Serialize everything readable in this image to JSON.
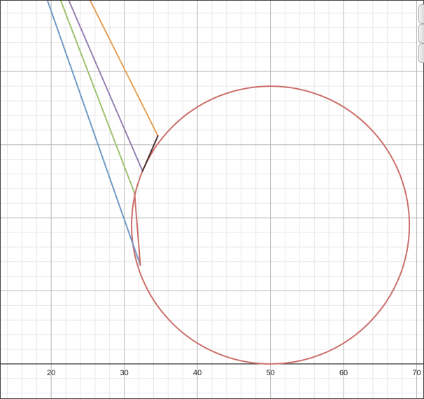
{
  "chart_data": {
    "type": "line",
    "title": "",
    "xlabel": "",
    "ylabel": "",
    "xlim": [
      13,
      71
    ],
    "ylim": [
      -4.8,
      49.8
    ],
    "x_major_step": 10,
    "y_major_step": 10,
    "minor_divisions": 5,
    "grid": true,
    "x_tick_labels": [
      "20",
      "30",
      "40",
      "50",
      "60",
      "70"
    ],
    "y_tick_labels": [],
    "colors": {
      "axis": "#333333",
      "major_grid": "#b8b8b8",
      "minor_grid": "#e7e7e7",
      "frame": "#444444"
    },
    "series": [
      {
        "type": "circle",
        "center": [
          50,
          19
        ],
        "radius": 19,
        "color": "#cc6f6a"
      },
      {
        "type": "line",
        "color": "#e8a055",
        "points": [
          [
            25.2,
            50
          ],
          [
            34.6,
            31.2
          ]
        ]
      },
      {
        "type": "line",
        "color": "#9581b3",
        "points": [
          [
            22.3,
            50
          ],
          [
            32.5,
            26.4
          ]
        ]
      },
      {
        "type": "line",
        "color": "#9dc26f",
        "points": [
          [
            21.2,
            50
          ],
          [
            31.4,
            23.4
          ]
        ]
      },
      {
        "type": "line",
        "color": "#7199c6",
        "points": [
          [
            19.4,
            50
          ],
          [
            32.2,
            13.5
          ]
        ]
      },
      {
        "type": "line",
        "color": "#4a2f2f",
        "points": [
          [
            32.5,
            26.4
          ],
          [
            34.6,
            31.2
          ]
        ]
      },
      {
        "type": "line",
        "color": "#cc6f6a",
        "points": [
          [
            31.4,
            23.4
          ],
          [
            32.2,
            13.5
          ]
        ]
      }
    ]
  },
  "panel": {
    "tabs": [
      {
        "name": "side-tab-1"
      },
      {
        "name": "side-tab-2"
      },
      {
        "name": "side-tab-3"
      }
    ]
  }
}
